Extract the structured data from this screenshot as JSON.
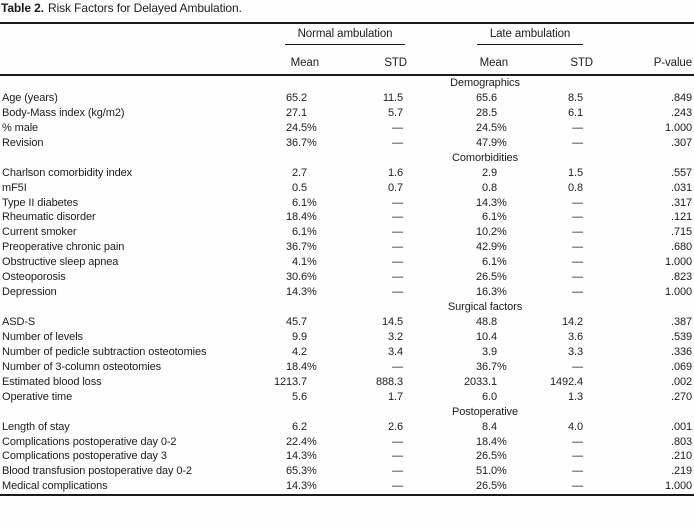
{
  "title": {
    "number": "Table 2.",
    "caption": "Risk Factors for Delayed Ambulation."
  },
  "columns": {
    "group_normal": "Normal ambulation",
    "group_late": "Late ambulation",
    "mean": "Mean",
    "std": "STD",
    "pvalue": "P-value"
  },
  "colors": {
    "text": "#1c1c1c",
    "rule": "#1a1a1a",
    "background": "#fefefe"
  },
  "sections": [
    {
      "name": "Demographics",
      "rows": [
        {
          "label": "Age (years)",
          "values": [
            "65.2",
            "11.5",
            "65.6",
            "8.5",
            ".849"
          ]
        },
        {
          "label": "Body-Mass index (kg/m2)",
          "values": [
            "27.1",
            "5.7",
            "28.5",
            "6.1",
            ".243"
          ]
        },
        {
          "label": "% male",
          "values": [
            "24.5%",
            "—",
            "24.5%",
            "—",
            "1.000"
          ]
        },
        {
          "label": "Revision",
          "values": [
            "36.7%",
            "—",
            "47.9%",
            "—",
            ".307"
          ]
        }
      ]
    },
    {
      "name": "Comorbidities",
      "rows": [
        {
          "label": "Charlson comorbidity index",
          "values": [
            "2.7",
            "1.6",
            "2.9",
            "1.5",
            ".557"
          ]
        },
        {
          "label": "mF5I",
          "values": [
            "0.5",
            "0.7",
            "0.8",
            "0.8",
            ".031"
          ]
        },
        {
          "label": "Type II diabetes",
          "values": [
            "6.1%",
            "—",
            "14.3%",
            "—",
            ".317"
          ]
        },
        {
          "label": "Rheumatic disorder",
          "values": [
            "18.4%",
            "—",
            "6.1%",
            "—",
            ".121"
          ]
        },
        {
          "label": "Current smoker",
          "values": [
            "6.1%",
            "—",
            "10.2%",
            "—",
            ".715"
          ]
        },
        {
          "label": "Preoperative chronic pain",
          "values": [
            "36.7%",
            "—",
            "42.9%",
            "—",
            ".680"
          ]
        },
        {
          "label": "Obstructive sleep apnea",
          "values": [
            "4.1%",
            "—",
            "6.1%",
            "—",
            "1.000"
          ]
        },
        {
          "label": "Osteoporosis",
          "values": [
            "30.6%",
            "—",
            "26.5%",
            "—",
            ".823"
          ]
        },
        {
          "label": "Depression",
          "values": [
            "14.3%",
            "—",
            "16.3%",
            "—",
            "1.000"
          ]
        }
      ]
    },
    {
      "name": "Surgical factors",
      "rows": [
        {
          "label": "ASD-S",
          "values": [
            "45.7",
            "14.5",
            "48.8",
            "14.2",
            ".387"
          ]
        },
        {
          "label": "Number of levels",
          "values": [
            "9.9",
            "3.2",
            "10.4",
            "3.6",
            ".539"
          ]
        },
        {
          "label": "Number of pedicle subtraction osteotomies",
          "values": [
            "4.2",
            "3.4",
            "3.9",
            "3.3",
            ".336"
          ]
        },
        {
          "label": "Number of 3-column osteotomies",
          "values": [
            "18.4%",
            "—",
            "36.7%",
            "—",
            ".069"
          ]
        },
        {
          "label": "Estimated blood loss",
          "values": [
            "1213.7",
            "888.3",
            "2033.1",
            "1492.4",
            ".002"
          ]
        },
        {
          "label": "Operative time",
          "values": [
            "5.6",
            "1.7",
            "6.0",
            "1.3",
            ".270"
          ]
        }
      ]
    },
    {
      "name": "Postoperative",
      "rows": [
        {
          "label": "Length of stay",
          "values": [
            "6.2",
            "2.6",
            "8.4",
            "4.0",
            ".001"
          ]
        },
        {
          "label": "Complications postoperative day 0-2",
          "values": [
            "22.4%",
            "—",
            "18.4%",
            "—",
            ".803"
          ]
        },
        {
          "label": "Complications postoperative day 3",
          "values": [
            "14.3%",
            "—",
            "26.5%",
            "—",
            ".210"
          ]
        },
        {
          "label": "Blood transfusion postoperative day 0-2",
          "values": [
            "65.3%",
            "—",
            "51.0%",
            "—",
            ".219"
          ]
        },
        {
          "label": "Medical complications",
          "values": [
            "14.3%",
            "—",
            "26.5%",
            "—",
            "1.000"
          ]
        }
      ]
    }
  ]
}
